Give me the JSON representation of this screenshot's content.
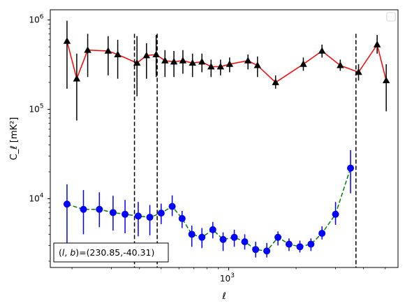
{
  "chart_data": {
    "type": "scatter",
    "title": "",
    "xlabel": "ℓ",
    "ylabel": "C_ℓ [mK²]",
    "xscale": "log",
    "yscale": "log",
    "xlim": [
      160,
      5700
    ],
    "ylim": [
      1700,
      1300000
    ],
    "legend_placement": "top-right",
    "x_ticks": [
      {
        "value": 1000,
        "mantissa": "10",
        "exp": "3"
      }
    ],
    "y_ticks": [
      {
        "value": 10000,
        "mantissa": "10",
        "exp": "4"
      },
      {
        "value": 100000,
        "mantissa": "10",
        "exp": "5"
      },
      {
        "value": 1000000,
        "mantissa": "10",
        "exp": "6"
      }
    ],
    "vlines": [
      380,
      480,
      3700
    ],
    "annotation": {
      "prefix": "(l, b)=",
      "text": "(230.85,-40.31)"
    },
    "x": [
      190,
      210,
      235,
      260,
      290,
      320,
      355,
      390,
      430,
      475,
      520,
      570,
      625,
      690,
      760,
      835,
      920,
      1010,
      1110,
      1220,
      1345,
      1475,
      1620,
      1780,
      1960,
      2155,
      2370,
      2610,
      2870,
      3150,
      3460,
      3800,
      4180,
      4600,
      5050
    ],
    "series": [
      {
        "color": "#000000",
        "line_color": "#ff0000",
        "line_style": "solid",
        "marker": "triangle",
        "y": [
          null,
          580000,
          220000,
          460000,
          450000,
          410000,
          330000,
          400000,
          410000,
          350000,
          340000,
          350000,
          330000,
          340000,
          300000,
          300000,
          320000,
          350000,
          310000,
          200000,
          320000,
          450000,
          310000,
          260000,
          530000,
          210000
        ],
        "x_index": [
          null,
          0,
          1,
          2,
          4,
          5,
          7,
          8,
          9,
          10,
          11,
          12,
          13,
          14,
          15,
          16,
          17,
          19,
          20,
          22,
          25,
          27,
          29,
          31,
          33,
          34
        ],
        "err_low": [
          null,
          170000,
          75000,
          230000,
          240000,
          220000,
          140000,
          220000,
          230000,
          230000,
          230000,
          250000,
          230000,
          260000,
          230000,
          240000,
          260000,
          280000,
          230000,
          170000,
          270000,
          380000,
          270000,
          210000,
          420000,
          95000
        ],
        "err_high": [
          null,
          980000,
          420000,
          700000,
          660000,
          600000,
          660000,
          550000,
          680000,
          460000,
          450000,
          460000,
          420000,
          420000,
          360000,
          360000,
          380000,
          410000,
          390000,
          240000,
          380000,
          530000,
          360000,
          320000,
          680000,
          320000
        ]
      },
      {
        "color": "#0000ff",
        "line_color": "#008000",
        "line_style": "dashed",
        "marker": "circle",
        "points": [
          {
            "x": 190,
            "y": 8700,
            "lo": 3000,
            "hi": 14500
          },
          {
            "x": 225,
            "y": 7600,
            "lo": 4000,
            "hi": 12500
          },
          {
            "x": 265,
            "y": 7600,
            "lo": 4800,
            "hi": 11800
          },
          {
            "x": 305,
            "y": 7000,
            "lo": 4400,
            "hi": 10800
          },
          {
            "x": 345,
            "y": 6700,
            "lo": 4100,
            "hi": 9700
          },
          {
            "x": 395,
            "y": 6400,
            "lo": 3800,
            "hi": 9200
          },
          {
            "x": 445,
            "y": 6200,
            "lo": 3900,
            "hi": 8500
          },
          {
            "x": 500,
            "y": 6900,
            "lo": 5200,
            "hi": 8800
          },
          {
            "x": 560,
            "y": 8200,
            "lo": 6400,
            "hi": 10900
          },
          {
            "x": 620,
            "y": 6000,
            "lo": 4700,
            "hi": 7300
          },
          {
            "x": 685,
            "y": 4000,
            "lo": 2900,
            "hi": 5000
          },
          {
            "x": 760,
            "y": 3700,
            "lo": 2800,
            "hi": 4700
          },
          {
            "x": 850,
            "y": 4500,
            "lo": 3600,
            "hi": 5500
          },
          {
            "x": 945,
            "y": 3500,
            "lo": 2600,
            "hi": 4200
          },
          {
            "x": 1060,
            "y": 3700,
            "lo": 2900,
            "hi": 4500
          },
          {
            "x": 1180,
            "y": 3300,
            "lo": 2700,
            "hi": 4000
          },
          {
            "x": 1320,
            "y": 2700,
            "lo": 2200,
            "hi": 3300
          },
          {
            "x": 1480,
            "y": 2600,
            "lo": 2200,
            "hi": 3200
          },
          {
            "x": 1660,
            "y": 3700,
            "lo": 3000,
            "hi": 4300
          },
          {
            "x": 1860,
            "y": 3100,
            "lo": 2600,
            "hi": 3600
          },
          {
            "x": 2080,
            "y": 2900,
            "lo": 2500,
            "hi": 3400
          },
          {
            "x": 2330,
            "y": 3100,
            "lo": 2600,
            "hi": 3600
          },
          {
            "x": 2610,
            "y": 4100,
            "lo": 3500,
            "hi": 4900
          },
          {
            "x": 3000,
            "y": 6700,
            "lo": 5100,
            "hi": 9200
          },
          {
            "x": 3500,
            "y": 22000,
            "lo": 11500,
            "hi": 35000
          }
        ]
      }
    ]
  }
}
